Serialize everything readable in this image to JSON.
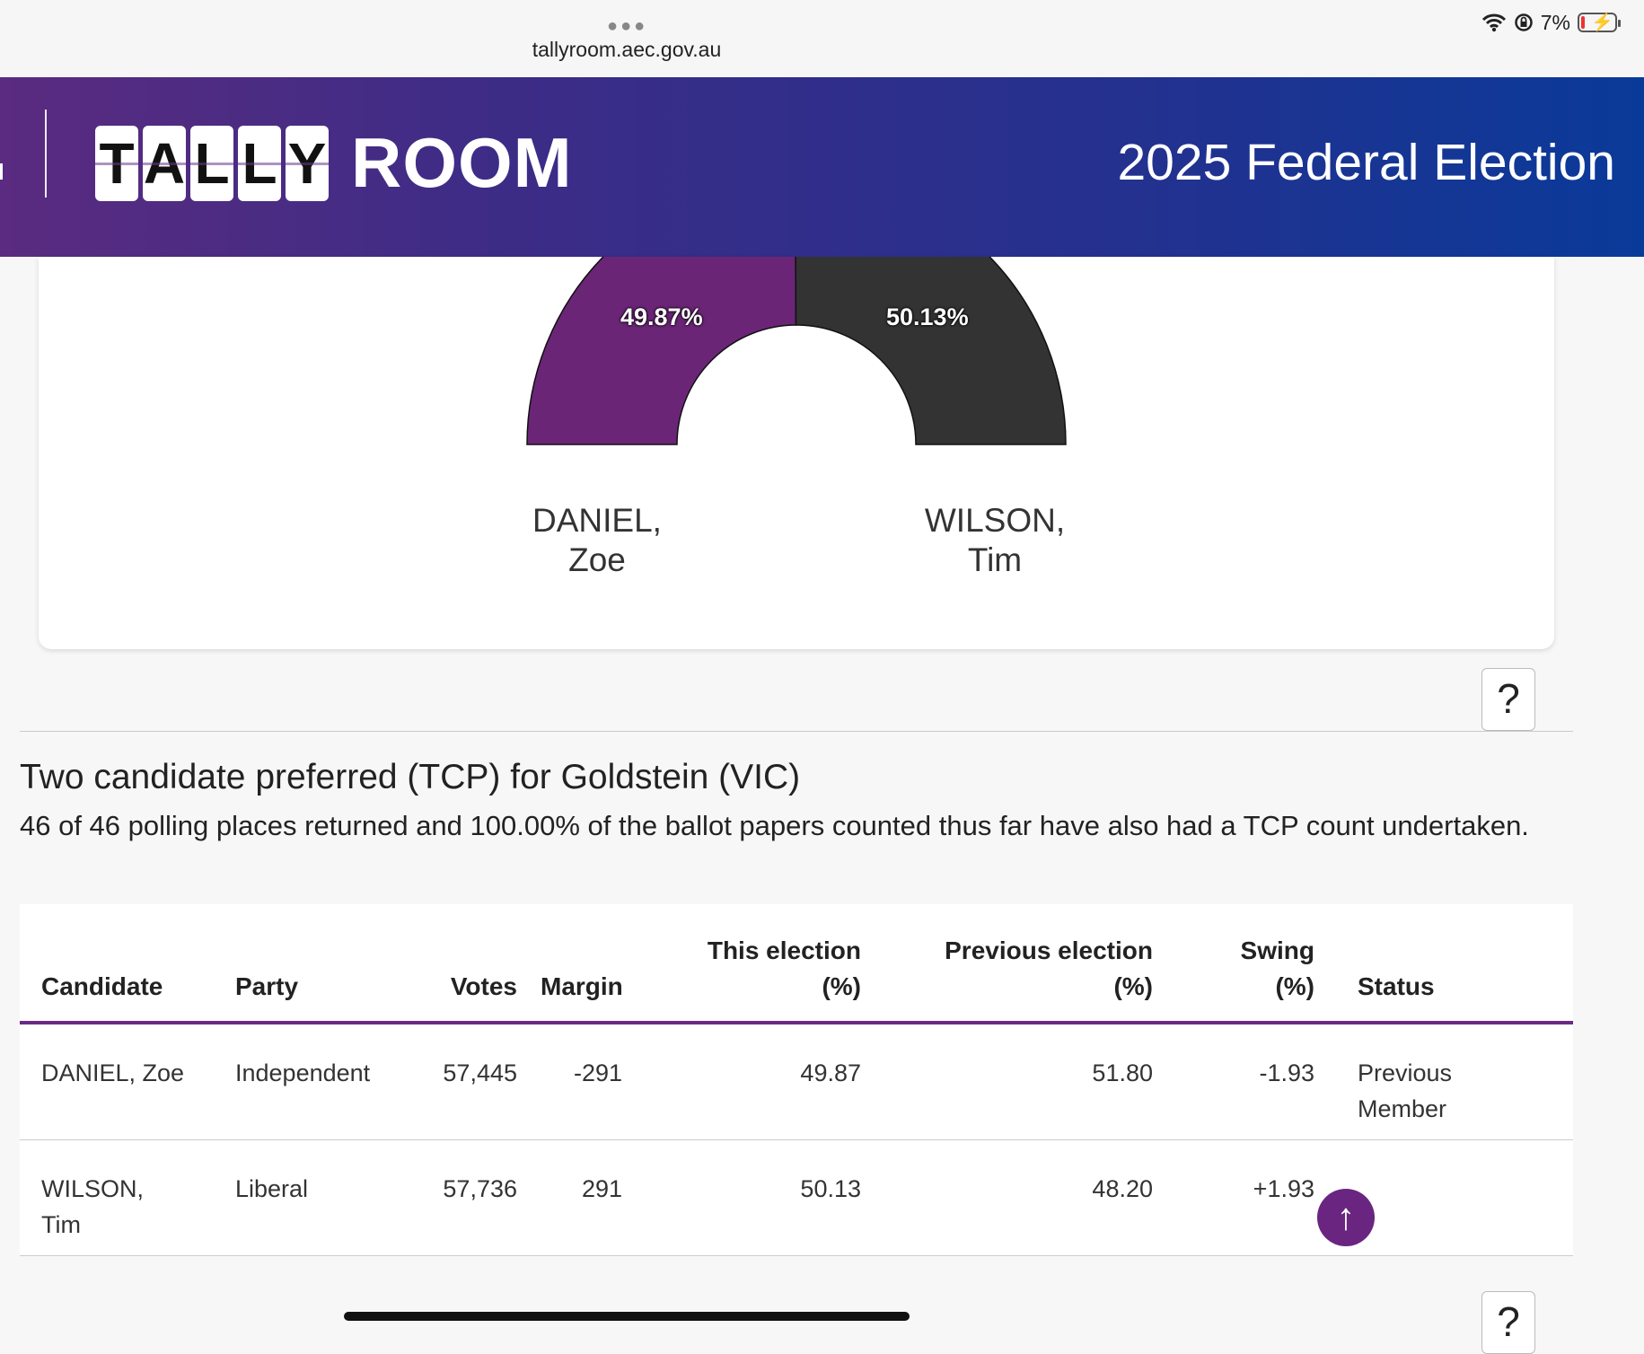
{
  "browser": {
    "url": "tallyroom.aec.gov.au",
    "battery": "7%"
  },
  "header": {
    "logo_letters": [
      "T",
      "A",
      "L",
      "L",
      "Y"
    ],
    "logo_room": "ROOM",
    "title": "2025 Federal Election"
  },
  "chart_data": {
    "type": "pie",
    "subtype": "half-donut",
    "slices": [
      {
        "candidate": "DANIEL, Zoe",
        "label_line1": "DANIEL,",
        "label_line2": "Zoe",
        "value": 49.87,
        "display": "49.87%",
        "color": "#6b2577"
      },
      {
        "candidate": "WILSON, Tim",
        "label_line1": "WILSON,",
        "label_line2": "Tim",
        "value": 50.13,
        "display": "50.13%",
        "color": "#333333"
      }
    ]
  },
  "tcp": {
    "title": "Two candidate preferred (TCP) for Goldstein (VIC)",
    "description": "46 of 46 polling places returned and 100.00% of the ballot papers counted thus far have also had a TCP count undertaken."
  },
  "table": {
    "headers": {
      "candidate": "Candidate",
      "party": "Party",
      "votes": "Votes",
      "margin": "Margin",
      "this_election_1": "This election",
      "this_election_2": "(%)",
      "previous_election_1": "Previous election",
      "previous_election_2": "(%)",
      "swing_1": "Swing",
      "swing_2": "(%)",
      "status": "Status"
    },
    "rows": [
      {
        "candidate_1": "DANIEL, Zoe",
        "candidate_2": "",
        "party": "Independent",
        "votes": "57,445",
        "margin": "-291",
        "this_election": "49.87",
        "previous_election": "51.80",
        "swing": "-1.93",
        "status_1": "Previous",
        "status_2": "Member"
      },
      {
        "candidate_1": "WILSON,",
        "candidate_2": "Tim",
        "party": "Liberal",
        "votes": "57,736",
        "margin": "291",
        "this_election": "50.13",
        "previous_election": "48.20",
        "swing": "+1.93",
        "status_1": "",
        "status_2": ""
      }
    ]
  },
  "help_label": "?",
  "to_top_label": "↑",
  "accent_color": "#6a2580"
}
